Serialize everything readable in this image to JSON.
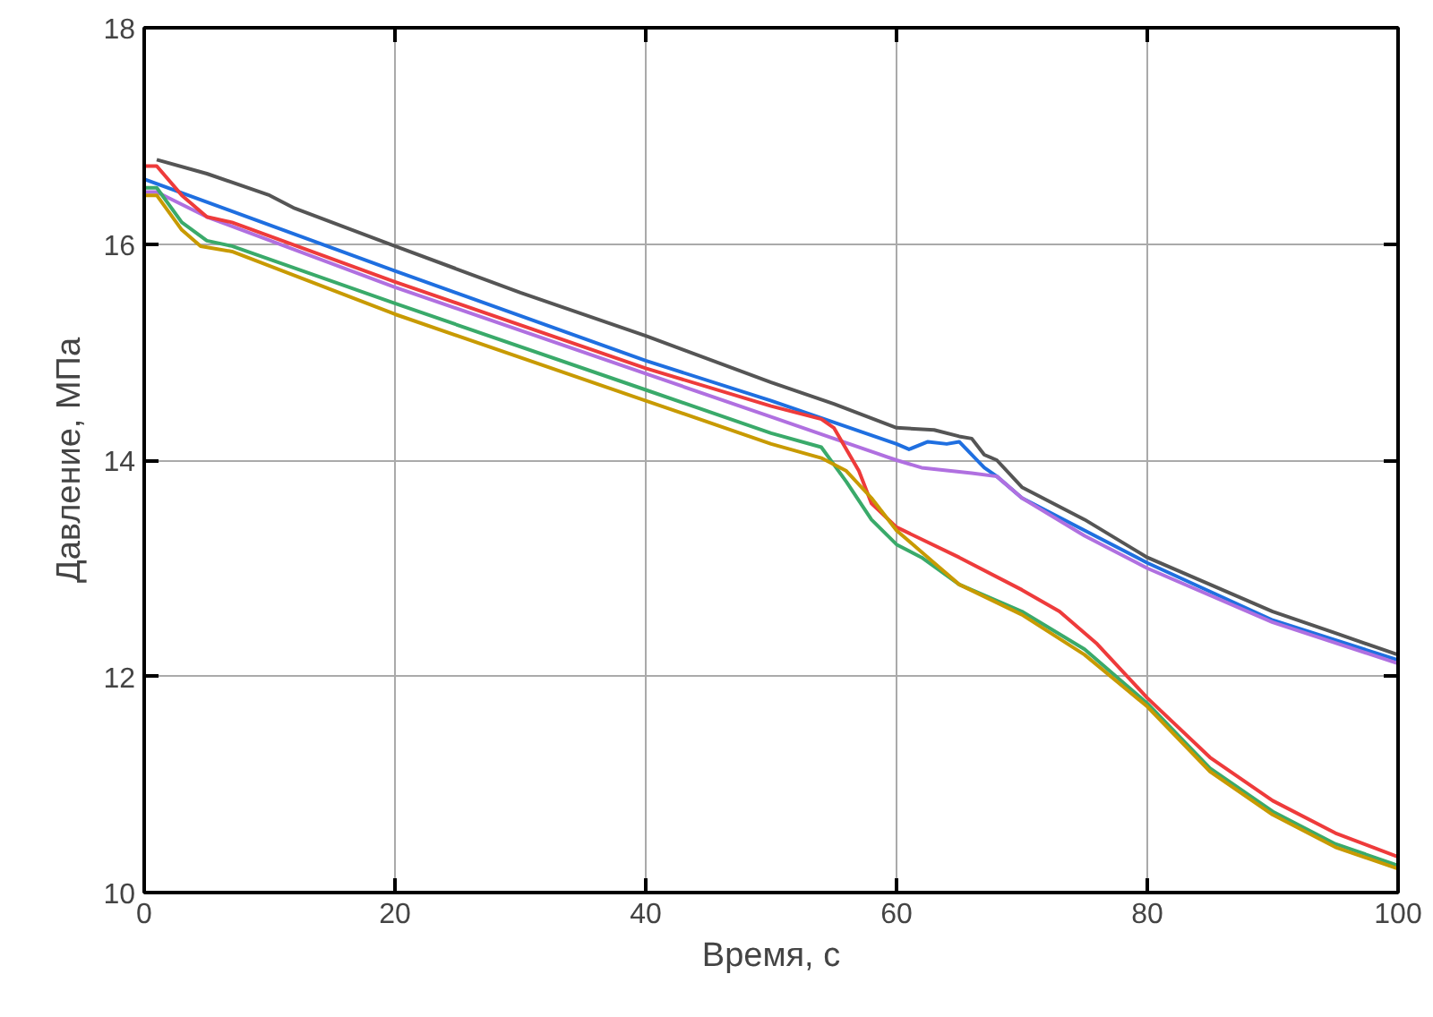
{
  "chart_data": {
    "type": "line",
    "xlabel": "Время, с",
    "ylabel": "Давление, МПа",
    "xlim": [
      0,
      100
    ],
    "ylim": [
      10,
      18
    ],
    "xticks": [
      0,
      20,
      40,
      60,
      80,
      100
    ],
    "yticks": [
      10,
      12,
      14,
      16,
      18
    ],
    "grid": true,
    "line_style": "solid",
    "series": [
      {
        "color": "#555555",
        "x": [
          1,
          5,
          10,
          12,
          20,
          30,
          40,
          50,
          55,
          60,
          63,
          65,
          66,
          67,
          68,
          70,
          75,
          80,
          85,
          90,
          95,
          100
        ],
        "values": [
          16.78,
          16.65,
          16.45,
          16.33,
          15.98,
          15.55,
          15.15,
          14.72,
          14.52,
          14.3,
          14.28,
          14.22,
          14.2,
          14.05,
          14.0,
          13.75,
          13.45,
          13.1,
          12.85,
          12.6,
          12.4,
          12.2
        ]
      },
      {
        "color": "#1f6fe0",
        "x": [
          0,
          20,
          40,
          50,
          60,
          61,
          62.5,
          64,
          65,
          66,
          67,
          68,
          70,
          75,
          80,
          90,
          100
        ],
        "values": [
          16.6,
          15.75,
          14.92,
          14.55,
          14.15,
          14.1,
          14.17,
          14.15,
          14.17,
          14.05,
          13.93,
          13.85,
          13.65,
          13.35,
          13.05,
          12.52,
          12.15
        ]
      },
      {
        "color": "#b070e0",
        "x": [
          0,
          1,
          5,
          20,
          40,
          50,
          55,
          60,
          62,
          66,
          68,
          70,
          75,
          80,
          90,
          100
        ],
        "values": [
          16.48,
          16.48,
          16.25,
          15.6,
          14.8,
          14.4,
          14.2,
          14.0,
          13.93,
          13.88,
          13.85,
          13.65,
          13.3,
          13.0,
          12.5,
          12.12
        ]
      },
      {
        "color": "#ee3b3b",
        "x": [
          0,
          1,
          3,
          5,
          7,
          20,
          40,
          50,
          54,
          55,
          57,
          58,
          60,
          65,
          70,
          73,
          76,
          80,
          85,
          90,
          95,
          100
        ],
        "values": [
          16.72,
          16.72,
          16.45,
          16.25,
          16.2,
          15.65,
          14.85,
          14.5,
          14.38,
          14.3,
          13.9,
          13.6,
          13.38,
          13.1,
          12.8,
          12.6,
          12.3,
          11.8,
          11.25,
          10.85,
          10.55,
          10.33
        ]
      },
      {
        "color": "#3aaa6a",
        "x": [
          0,
          1,
          3,
          5,
          7,
          20,
          40,
          50,
          54,
          56,
          58,
          60,
          62,
          65,
          70,
          75,
          80,
          85,
          90,
          95,
          100
        ],
        "values": [
          16.52,
          16.52,
          16.2,
          16.03,
          15.98,
          15.45,
          14.65,
          14.25,
          14.12,
          13.8,
          13.45,
          13.22,
          13.1,
          12.85,
          12.6,
          12.25,
          11.75,
          11.15,
          10.75,
          10.45,
          10.25
        ]
      },
      {
        "color": "#c89a00",
        "x": [
          0,
          1,
          3,
          4.5,
          7,
          20,
          40,
          50,
          54,
          56,
          58,
          60,
          63,
          65,
          70,
          75,
          80,
          85,
          90,
          95,
          100
        ],
        "values": [
          16.45,
          16.45,
          16.13,
          15.98,
          15.93,
          15.35,
          14.55,
          14.15,
          14.02,
          13.9,
          13.65,
          13.35,
          13.05,
          12.85,
          12.57,
          12.2,
          11.72,
          11.12,
          10.72,
          10.42,
          10.22
        ]
      }
    ]
  }
}
